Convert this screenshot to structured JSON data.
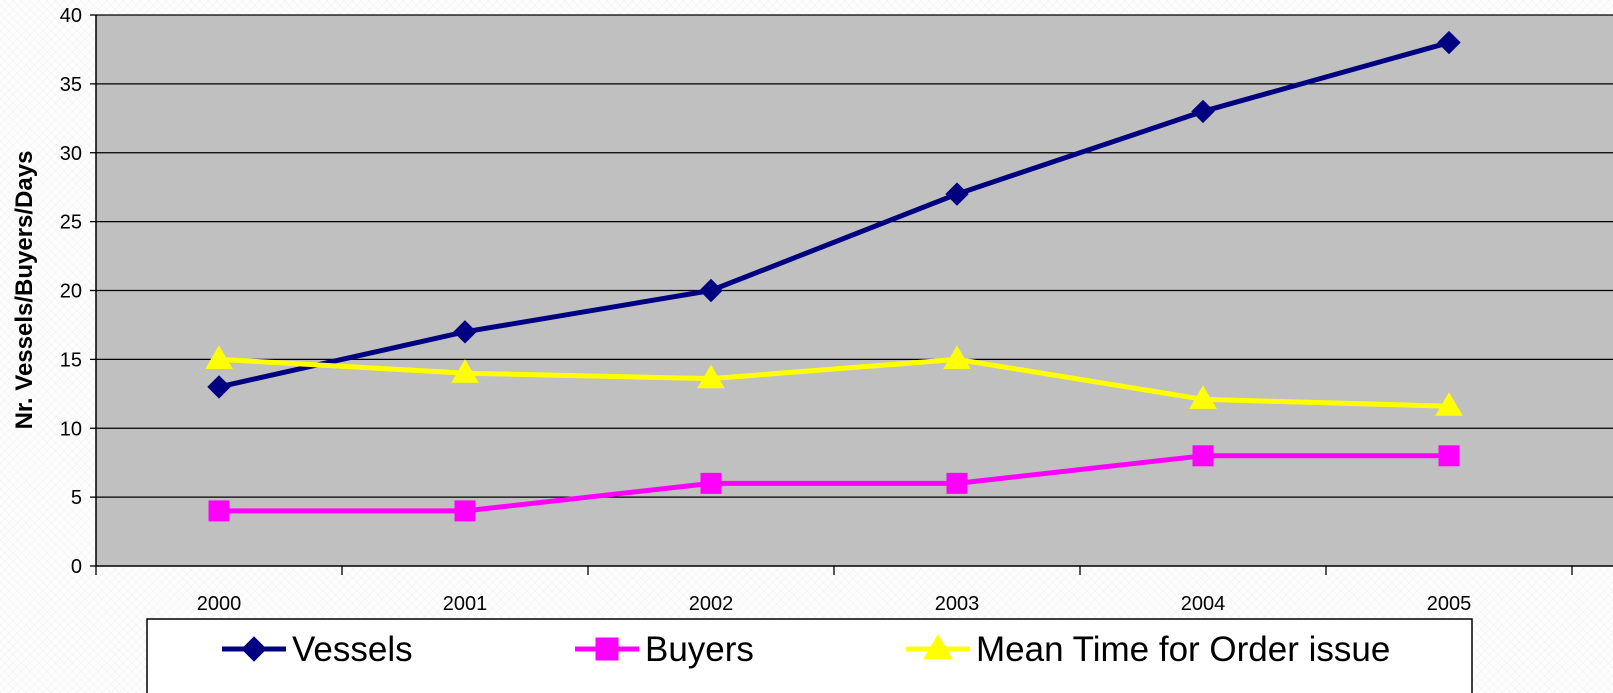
{
  "chart_data": {
    "type": "line",
    "title": "",
    "xlabel": "",
    "ylabel": "Nr. Vessels/Buyers/Days",
    "categories": [
      "2000",
      "2001",
      "2002",
      "2003",
      "2004",
      "2005"
    ],
    "ylim": [
      0,
      40
    ],
    "yticks": [
      0,
      5,
      10,
      15,
      20,
      25,
      30,
      35,
      40
    ],
    "grid": true,
    "legend_position": "bottom",
    "plot_background": "#c0c0c0",
    "series": [
      {
        "name": "Vessels",
        "values": [
          13,
          17,
          20,
          27,
          33,
          38
        ],
        "color": "#000080",
        "marker": "diamond"
      },
      {
        "name": "Buyers",
        "values": [
          4,
          4,
          6,
          6,
          8,
          8
        ],
        "color": "#ff00ff",
        "marker": "square"
      },
      {
        "name": "Mean Time for Order issue",
        "values": [
          15,
          14,
          13.6,
          15,
          12.1,
          11.6
        ],
        "color": "#ffff00",
        "marker": "triangle"
      }
    ]
  }
}
